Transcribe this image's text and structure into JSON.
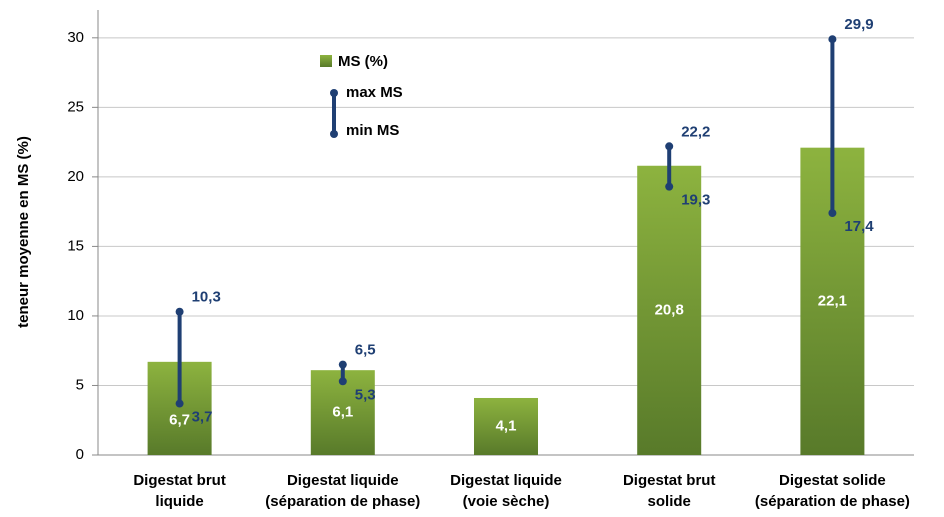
{
  "chart_data": {
    "type": "bar",
    "y_label": "teneur moyenne en MS (%)",
    "categories": [
      [
        "Digestat brut",
        "liquide"
      ],
      [
        "Digestat liquide",
        "(séparation de phase)"
      ],
      [
        "Digestat liquide",
        "(voie sèche)"
      ],
      [
        "Digestat brut",
        "solide"
      ],
      [
        "Digestat solide",
        "(séparation de phase)"
      ]
    ],
    "series": [
      {
        "name": "MS (%)",
        "color": "#77983a",
        "values": [
          6.7,
          6.1,
          4.1,
          20.8,
          22.1
        ],
        "value_labels": [
          "6,7",
          "6,1",
          "4,1",
          "20,8",
          "22,1"
        ]
      },
      {
        "name": "max MS",
        "color": "#1f3f73",
        "values": [
          10.3,
          6.5,
          null,
          22.2,
          29.9
        ],
        "value_labels": [
          "10,3",
          "6,5",
          null,
          "22,2",
          "29,9"
        ]
      },
      {
        "name": "min MS",
        "color": "#1f3f73",
        "values": [
          3.7,
          5.3,
          null,
          19.3,
          17.4
        ],
        "value_labels": [
          "3,7",
          "5,3",
          null,
          "19,3",
          "17,4"
        ]
      }
    ],
    "ylim": [
      0,
      32
    ],
    "yticks": [
      0,
      5,
      10,
      15,
      20,
      25,
      30
    ],
    "grid": true,
    "legend": "upper center"
  }
}
